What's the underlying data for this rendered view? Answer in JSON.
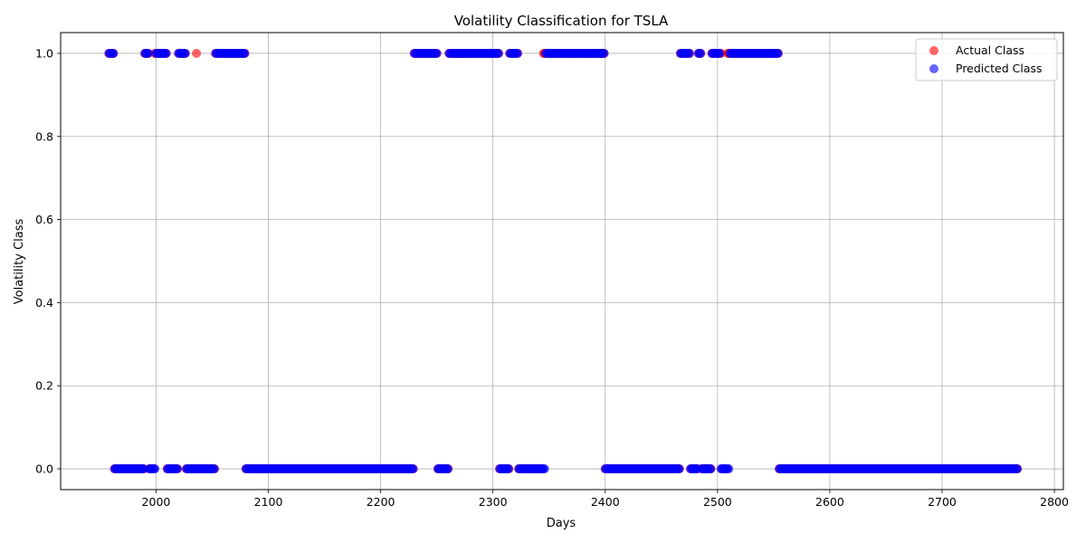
{
  "chart_data": {
    "type": "scatter",
    "title": "Volatility Classification for TSLA",
    "xlabel": "Days",
    "ylabel": "Volatility Class",
    "xlim": [
      1915,
      2808
    ],
    "ylim": [
      -0.05,
      1.05
    ],
    "xticks": [
      2000,
      2100,
      2200,
      2300,
      2400,
      2500,
      2600,
      2700,
      2800
    ],
    "yticks": [
      0.0,
      0.2,
      0.4,
      0.6,
      0.8,
      1.0
    ],
    "ytick_labels": [
      "0.0",
      "0.2",
      "0.4",
      "0.6",
      "0.8",
      "1.0"
    ],
    "grid": true,
    "legend_position": "top-right",
    "day_range": [
      1958,
      2767
    ],
    "series": [
      {
        "name": "Actual Class",
        "color": "#ff0000",
        "high_segments": [
          [
            1958,
            1962
          ],
          [
            1990,
            1993
          ],
          [
            1999,
            2009
          ],
          [
            2020,
            2026
          ],
          [
            2036,
            2036
          ],
          [
            2053,
            2079
          ],
          [
            2230,
            2250
          ],
          [
            2261,
            2305
          ],
          [
            2315,
            2322
          ],
          [
            2345,
            2399
          ],
          [
            2467,
            2475
          ],
          [
            2483,
            2485
          ],
          [
            2495,
            2503
          ],
          [
            2509,
            2554
          ]
        ]
      },
      {
        "name": "Predicted Class",
        "color": "#0000ff",
        "high_segments": [
          [
            1958,
            1962
          ],
          [
            1990,
            1993
          ],
          [
            2000,
            2009
          ],
          [
            2020,
            2026
          ],
          [
            2053,
            2079
          ],
          [
            2230,
            2250
          ],
          [
            2261,
            2305
          ],
          [
            2315,
            2322
          ],
          [
            2347,
            2399
          ],
          [
            2467,
            2475
          ],
          [
            2483,
            2485
          ],
          [
            2495,
            2502
          ],
          [
            2511,
            2554
          ]
        ]
      }
    ]
  }
}
